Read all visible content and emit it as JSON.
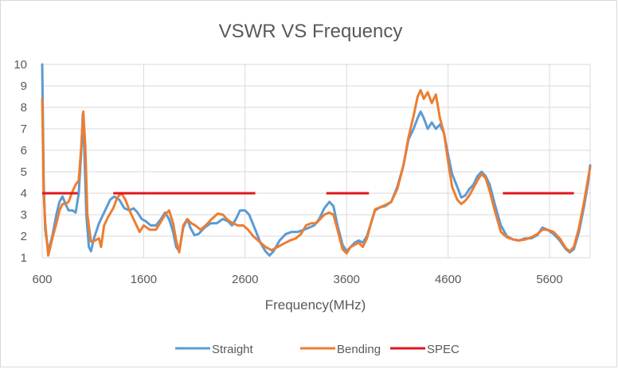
{
  "chart_data": {
    "type": "line",
    "title": "VSWR VS Frequency",
    "xlabel": "Frequency(MHz)",
    "ylabel": "",
    "xlim": [
      600,
      6000
    ],
    "ylim": [
      1,
      10
    ],
    "x_ticks": [
      "600",
      "1600",
      "2600",
      "3600",
      "4600",
      "5600"
    ],
    "x_tick_values": [
      600,
      1600,
      2600,
      3600,
      4600,
      5600
    ],
    "y_ticks": [
      "1",
      "2",
      "3",
      "4",
      "5",
      "6",
      "7",
      "8",
      "9",
      "10"
    ],
    "y_tick_values": [
      1,
      2,
      3,
      4,
      5,
      6,
      7,
      8,
      9,
      10
    ],
    "grid": {
      "vertical": true,
      "horizontal": true
    },
    "legend_position": "bottom",
    "series": [
      {
        "name": "Straight",
        "color": "#5b9bd5",
        "points": [
          [
            600,
            10.0
          ],
          [
            615,
            4.5
          ],
          [
            630,
            2.3
          ],
          [
            660,
            1.3
          ],
          [
            700,
            2.0
          ],
          [
            740,
            3.0
          ],
          [
            770,
            3.6
          ],
          [
            800,
            3.85
          ],
          [
            830,
            3.5
          ],
          [
            860,
            3.2
          ],
          [
            900,
            3.2
          ],
          [
            930,
            3.1
          ],
          [
            960,
            4.0
          ],
          [
            985,
            6.0
          ],
          [
            1000,
            7.7
          ],
          [
            1015,
            6.0
          ],
          [
            1035,
            3.0
          ],
          [
            1060,
            1.5
          ],
          [
            1080,
            1.3
          ],
          [
            1110,
            1.9
          ],
          [
            1160,
            2.6
          ],
          [
            1220,
            3.2
          ],
          [
            1270,
            3.7
          ],
          [
            1310,
            3.85
          ],
          [
            1360,
            3.7
          ],
          [
            1410,
            3.3
          ],
          [
            1460,
            3.2
          ],
          [
            1500,
            3.3
          ],
          [
            1540,
            3.1
          ],
          [
            1580,
            2.8
          ],
          [
            1620,
            2.7
          ],
          [
            1670,
            2.5
          ],
          [
            1720,
            2.5
          ],
          [
            1770,
            2.8
          ],
          [
            1810,
            3.1
          ],
          [
            1850,
            2.8
          ],
          [
            1890,
            2.2
          ],
          [
            1920,
            1.5
          ],
          [
            1950,
            1.3
          ],
          [
            1990,
            2.4
          ],
          [
            2030,
            2.8
          ],
          [
            2060,
            2.4
          ],
          [
            2100,
            2.05
          ],
          [
            2140,
            2.1
          ],
          [
            2200,
            2.4
          ],
          [
            2260,
            2.6
          ],
          [
            2320,
            2.6
          ],
          [
            2380,
            2.8
          ],
          [
            2430,
            2.7
          ],
          [
            2470,
            2.5
          ],
          [
            2510,
            2.8
          ],
          [
            2550,
            3.2
          ],
          [
            2600,
            3.2
          ],
          [
            2640,
            3.0
          ],
          [
            2700,
            2.3
          ],
          [
            2750,
            1.7
          ],
          [
            2800,
            1.3
          ],
          [
            2840,
            1.1
          ],
          [
            2880,
            1.3
          ],
          [
            2940,
            1.8
          ],
          [
            3000,
            2.1
          ],
          [
            3060,
            2.2
          ],
          [
            3120,
            2.2
          ],
          [
            3180,
            2.3
          ],
          [
            3230,
            2.4
          ],
          [
            3280,
            2.5
          ],
          [
            3330,
            2.8
          ],
          [
            3380,
            3.3
          ],
          [
            3430,
            3.6
          ],
          [
            3470,
            3.4
          ],
          [
            3510,
            2.5
          ],
          [
            3560,
            1.6
          ],
          [
            3600,
            1.3
          ],
          [
            3640,
            1.5
          ],
          [
            3680,
            1.7
          ],
          [
            3720,
            1.8
          ],
          [
            3760,
            1.7
          ],
          [
            3800,
            2.0
          ],
          [
            3840,
            2.6
          ],
          [
            3880,
            3.2
          ],
          [
            3930,
            3.35
          ],
          [
            3980,
            3.4
          ],
          [
            4040,
            3.6
          ],
          [
            4100,
            4.3
          ],
          [
            4160,
            5.3
          ],
          [
            4210,
            6.5
          ],
          [
            4260,
            7.0
          ],
          [
            4300,
            7.5
          ],
          [
            4330,
            7.8
          ],
          [
            4360,
            7.5
          ],
          [
            4400,
            7.0
          ],
          [
            4440,
            7.3
          ],
          [
            4480,
            7.0
          ],
          [
            4520,
            7.2
          ],
          [
            4560,
            6.8
          ],
          [
            4600,
            5.8
          ],
          [
            4640,
            4.9
          ],
          [
            4690,
            4.3
          ],
          [
            4730,
            3.8
          ],
          [
            4770,
            3.9
          ],
          [
            4810,
            4.2
          ],
          [
            4850,
            4.4
          ],
          [
            4890,
            4.8
          ],
          [
            4930,
            5.0
          ],
          [
            4970,
            4.8
          ],
          [
            5010,
            4.4
          ],
          [
            5060,
            3.5
          ],
          [
            5120,
            2.5
          ],
          [
            5180,
            2.0
          ],
          [
            5240,
            1.85
          ],
          [
            5300,
            1.8
          ],
          [
            5360,
            1.9
          ],
          [
            5420,
            1.9
          ],
          [
            5480,
            2.05
          ],
          [
            5530,
            2.4
          ],
          [
            5580,
            2.3
          ],
          [
            5640,
            2.1
          ],
          [
            5700,
            1.8
          ],
          [
            5760,
            1.4
          ],
          [
            5800,
            1.25
          ],
          [
            5840,
            1.4
          ],
          [
            5890,
            2.2
          ],
          [
            5940,
            3.4
          ],
          [
            5980,
            4.5
          ],
          [
            6000,
            5.3
          ]
        ]
      },
      {
        "name": "Bending",
        "color": "#ed7d31",
        "points": [
          [
            600,
            8.4
          ],
          [
            615,
            4.0
          ],
          [
            630,
            2.6
          ],
          [
            660,
            1.1
          ],
          [
            700,
            1.9
          ],
          [
            740,
            2.6
          ],
          [
            770,
            3.2
          ],
          [
            800,
            3.5
          ],
          [
            830,
            3.5
          ],
          [
            860,
            3.6
          ],
          [
            900,
            4.1
          ],
          [
            930,
            4.4
          ],
          [
            960,
            4.6
          ],
          [
            985,
            6.2
          ],
          [
            1005,
            7.8
          ],
          [
            1025,
            6.2
          ],
          [
            1045,
            3.0
          ],
          [
            1080,
            1.75
          ],
          [
            1120,
            1.8
          ],
          [
            1160,
            1.9
          ],
          [
            1180,
            1.5
          ],
          [
            1210,
            2.5
          ],
          [
            1250,
            2.9
          ],
          [
            1300,
            3.3
          ],
          [
            1340,
            3.8
          ],
          [
            1380,
            4.0
          ],
          [
            1420,
            3.7
          ],
          [
            1460,
            3.2
          ],
          [
            1510,
            2.7
          ],
          [
            1560,
            2.2
          ],
          [
            1600,
            2.5
          ],
          [
            1660,
            2.3
          ],
          [
            1720,
            2.3
          ],
          [
            1760,
            2.6
          ],
          [
            1810,
            3.0
          ],
          [
            1850,
            3.2
          ],
          [
            1890,
            2.6
          ],
          [
            1920,
            1.8
          ],
          [
            1950,
            1.25
          ],
          [
            1990,
            2.5
          ],
          [
            2030,
            2.8
          ],
          [
            2070,
            2.6
          ],
          [
            2110,
            2.5
          ],
          [
            2160,
            2.3
          ],
          [
            2210,
            2.5
          ],
          [
            2270,
            2.8
          ],
          [
            2330,
            3.05
          ],
          [
            2380,
            3.0
          ],
          [
            2430,
            2.75
          ],
          [
            2480,
            2.6
          ],
          [
            2530,
            2.5
          ],
          [
            2580,
            2.5
          ],
          [
            2630,
            2.3
          ],
          [
            2680,
            2.0
          ],
          [
            2740,
            1.75
          ],
          [
            2800,
            1.5
          ],
          [
            2860,
            1.35
          ],
          [
            2920,
            1.5
          ],
          [
            2980,
            1.65
          ],
          [
            3040,
            1.8
          ],
          [
            3100,
            1.9
          ],
          [
            3150,
            2.1
          ],
          [
            3200,
            2.5
          ],
          [
            3250,
            2.6
          ],
          [
            3300,
            2.6
          ],
          [
            3340,
            2.8
          ],
          [
            3380,
            3.0
          ],
          [
            3430,
            3.1
          ],
          [
            3470,
            3.0
          ],
          [
            3510,
            2.3
          ],
          [
            3560,
            1.4
          ],
          [
            3600,
            1.2
          ],
          [
            3640,
            1.5
          ],
          [
            3680,
            1.6
          ],
          [
            3720,
            1.7
          ],
          [
            3760,
            1.5
          ],
          [
            3800,
            1.9
          ],
          [
            3840,
            2.6
          ],
          [
            3880,
            3.25
          ],
          [
            3930,
            3.35
          ],
          [
            3980,
            3.45
          ],
          [
            4040,
            3.6
          ],
          [
            4100,
            4.2
          ],
          [
            4160,
            5.3
          ],
          [
            4210,
            6.6
          ],
          [
            4260,
            7.6
          ],
          [
            4300,
            8.5
          ],
          [
            4330,
            8.8
          ],
          [
            4360,
            8.4
          ],
          [
            4400,
            8.7
          ],
          [
            4440,
            8.2
          ],
          [
            4480,
            8.6
          ],
          [
            4520,
            7.5
          ],
          [
            4560,
            6.8
          ],
          [
            4600,
            5.5
          ],
          [
            4640,
            4.3
          ],
          [
            4690,
            3.7
          ],
          [
            4730,
            3.5
          ],
          [
            4770,
            3.65
          ],
          [
            4810,
            3.9
          ],
          [
            4850,
            4.25
          ],
          [
            4890,
            4.6
          ],
          [
            4930,
            4.9
          ],
          [
            4970,
            4.7
          ],
          [
            5010,
            4.1
          ],
          [
            5060,
            3.2
          ],
          [
            5120,
            2.2
          ],
          [
            5180,
            1.95
          ],
          [
            5240,
            1.85
          ],
          [
            5300,
            1.8
          ],
          [
            5360,
            1.85
          ],
          [
            5420,
            1.95
          ],
          [
            5480,
            2.1
          ],
          [
            5530,
            2.3
          ],
          [
            5580,
            2.3
          ],
          [
            5640,
            2.2
          ],
          [
            5700,
            1.9
          ],
          [
            5760,
            1.45
          ],
          [
            5800,
            1.3
          ],
          [
            5840,
            1.5
          ],
          [
            5890,
            2.4
          ],
          [
            5940,
            3.6
          ],
          [
            5980,
            4.7
          ],
          [
            6000,
            5.2
          ]
        ]
      },
      {
        "name": "SPEC",
        "color": "#e0171b",
        "segments": [
          [
            [
              600,
              4
            ],
            [
              950,
              4
            ]
          ],
          [
            [
              1300,
              4
            ],
            [
              2700,
              4
            ]
          ],
          [
            [
              3400,
              4
            ],
            [
              3820,
              4
            ]
          ],
          [
            [
              5140,
              4
            ],
            [
              5840,
              4
            ]
          ]
        ]
      }
    ]
  }
}
